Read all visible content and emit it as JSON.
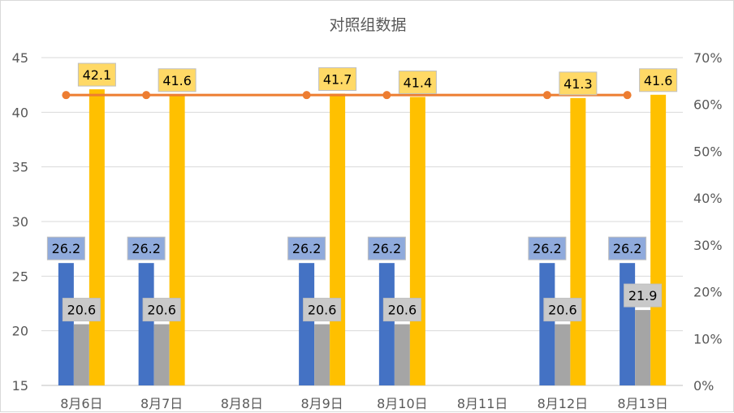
{
  "chart_data": {
    "type": "bar",
    "title": "对照组数据",
    "categories": [
      "8月6日",
      "8月7日",
      "8月8日",
      "8月9日",
      "8月10日",
      "8月11日",
      "8月12日",
      "8月13日"
    ],
    "y_left": {
      "range": [
        15,
        45
      ],
      "ticks": [
        "15",
        "20",
        "25",
        "30",
        "35",
        "40",
        "45"
      ]
    },
    "y_right": {
      "range": [
        0,
        70
      ],
      "ticks": [
        "0%",
        "10%",
        "20%",
        "30%",
        "40%",
        "50%",
        "60%",
        "70%"
      ]
    },
    "grid": true,
    "series": [
      {
        "type": "bar",
        "axis": "left",
        "color": "#4472C4",
        "label_bg": "#8FAADC",
        "values": [
          26.2,
          26.2,
          null,
          26.2,
          26.2,
          null,
          26.2,
          26.2
        ],
        "labels": [
          "26.2",
          "26.2",
          "",
          "26.2",
          "26.2",
          "",
          "26.2",
          "26.2"
        ]
      },
      {
        "type": "bar",
        "axis": "left",
        "color": "#A5A5A5",
        "label_bg": "#C9C9C9",
        "values": [
          20.6,
          20.6,
          null,
          20.6,
          20.6,
          null,
          20.6,
          21.9
        ],
        "labels": [
          "20.6",
          "20.6",
          "",
          "20.6",
          "20.6",
          "",
          "20.6",
          "21.9"
        ]
      },
      {
        "type": "bar",
        "axis": "left",
        "color": "#FFC000",
        "label_bg": "#FFD966",
        "values": [
          42.1,
          41.6,
          null,
          41.7,
          41.4,
          null,
          41.3,
          41.6
        ],
        "labels": [
          "42.1",
          "41.6",
          "",
          "41.7",
          "41.4",
          "",
          "41.3",
          "41.6"
        ]
      },
      {
        "type": "line",
        "axis": "right",
        "color": "#ED7D31",
        "values": [
          0.62,
          0.62,
          null,
          0.62,
          0.62,
          null,
          0.62,
          0.62
        ]
      }
    ]
  }
}
